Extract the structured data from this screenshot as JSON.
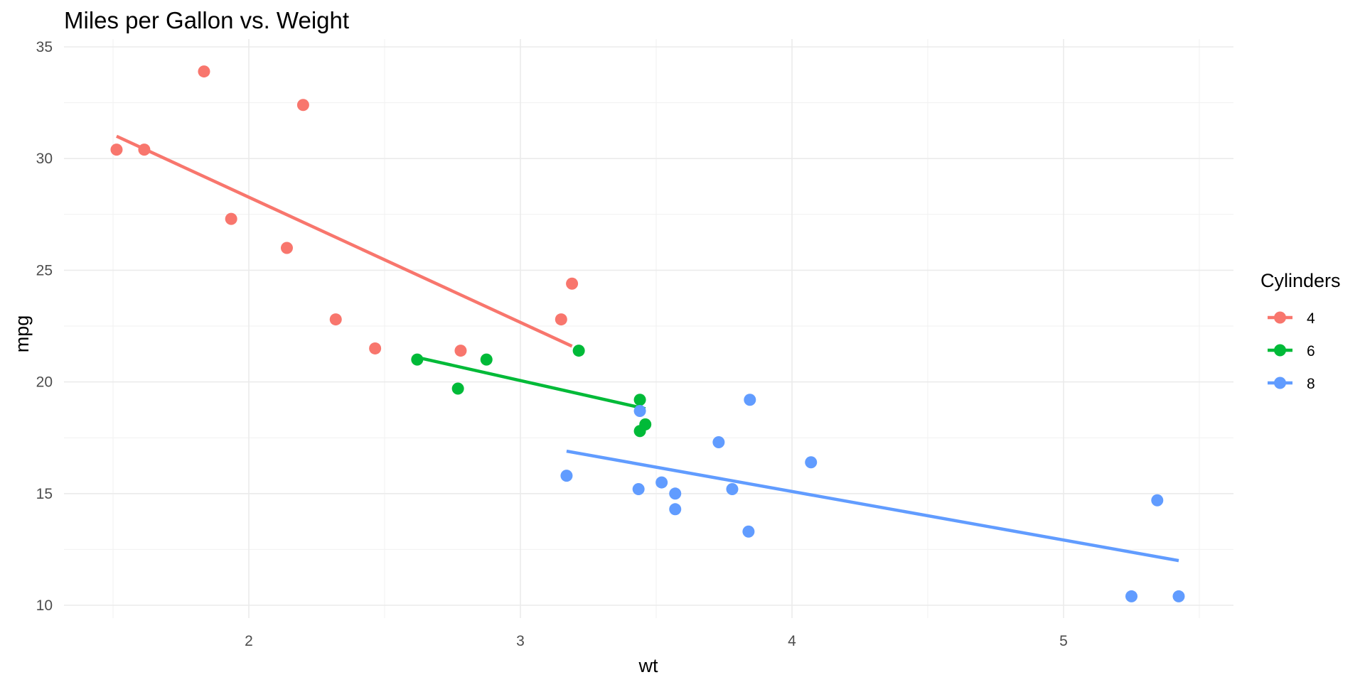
{
  "chart_data": {
    "type": "scatter",
    "title": "Miles per Gallon vs. Weight",
    "xlabel": "wt",
    "ylabel": "mpg",
    "xlim": [
      1.35,
      5.6
    ],
    "ylim": [
      9.4,
      35.3
    ],
    "x_ticks": [
      2,
      3,
      4,
      5
    ],
    "x_tick_labels": [
      "2",
      "3",
      "4",
      "5"
    ],
    "y_ticks": [
      10,
      15,
      20,
      25,
      30,
      35
    ],
    "y_tick_labels": [
      "10",
      "15",
      "20",
      "25",
      "30",
      "35"
    ],
    "grid": true,
    "legend": {
      "title": "Cylinders",
      "position": "right"
    },
    "series": [
      {
        "name": "4",
        "color": "#F8766D",
        "points": [
          [
            2.32,
            22.8
          ],
          [
            3.19,
            24.4
          ],
          [
            3.15,
            22.8
          ],
          [
            2.2,
            32.4
          ],
          [
            1.615,
            30.4
          ],
          [
            1.835,
            33.9
          ],
          [
            2.465,
            21.5
          ],
          [
            1.935,
            27.3
          ],
          [
            2.14,
            26.0
          ],
          [
            1.513,
            30.4
          ],
          [
            2.78,
            21.4
          ]
        ],
        "fit": [
          [
            1.513,
            31.0
          ],
          [
            3.19,
            21.6
          ]
        ]
      },
      {
        "name": "6",
        "color": "#00BA38",
        "points": [
          [
            2.62,
            21.0
          ],
          [
            2.875,
            21.0
          ],
          [
            3.215,
            21.4
          ],
          [
            3.46,
            18.1
          ],
          [
            3.44,
            19.2
          ],
          [
            3.44,
            17.8
          ],
          [
            2.77,
            19.7
          ]
        ],
        "fit": [
          [
            2.62,
            21.1
          ],
          [
            3.46,
            18.8
          ]
        ]
      },
      {
        "name": "8",
        "color": "#619CFF",
        "points": [
          [
            3.44,
            18.7
          ],
          [
            3.57,
            14.3
          ],
          [
            4.07,
            16.4
          ],
          [
            3.73,
            17.3
          ],
          [
            3.78,
            15.2
          ],
          [
            5.25,
            10.4
          ],
          [
            5.424,
            10.4
          ],
          [
            5.345,
            14.7
          ],
          [
            3.52,
            15.5
          ],
          [
            3.435,
            15.2
          ],
          [
            3.84,
            13.3
          ],
          [
            3.845,
            19.2
          ],
          [
            3.17,
            15.8
          ],
          [
            3.57,
            15.0
          ]
        ],
        "fit": [
          [
            3.17,
            16.9
          ],
          [
            5.424,
            12.0
          ]
        ]
      }
    ]
  }
}
